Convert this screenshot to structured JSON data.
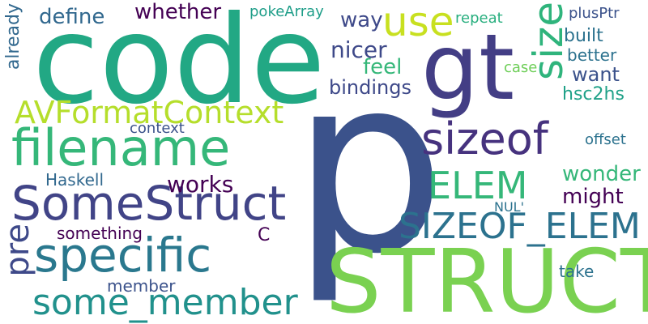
{
  "words": [
    {
      "text": "code",
      "color": "#22a884"
    },
    {
      "text": "p",
      "color": "#3b528b"
    },
    {
      "text": "STRUCT",
      "color": "#7ad151"
    },
    {
      "text": "gt",
      "color": "#433e85"
    },
    {
      "text": "filename",
      "color": "#35b779"
    },
    {
      "text": "SomeStruct",
      "color": "#414487"
    },
    {
      "text": "specific",
      "color": "#2a788e"
    },
    {
      "text": "some_member",
      "color": "#21918c"
    },
    {
      "text": "sizeof",
      "color": "#46327e"
    },
    {
      "text": "size",
      "color": "#2fb47c"
    },
    {
      "text": "use",
      "color": "#c8e020"
    },
    {
      "text": "AVFormatContext",
      "color": "#b5de2b"
    },
    {
      "text": "SIZEOF_ELEM",
      "color": "#2c728e"
    },
    {
      "text": "ELEM",
      "color": "#35b779"
    },
    {
      "text": "pre",
      "color": "#3e4989"
    },
    {
      "text": "define",
      "color": "#31688e"
    },
    {
      "text": "whether",
      "color": "#440154"
    },
    {
      "text": "pokeArray",
      "color": "#1f9e89"
    },
    {
      "text": "repeat",
      "color": "#29af7f"
    },
    {
      "text": "plusPtr",
      "color": "#3b528b"
    },
    {
      "text": "way",
      "color": "#3e4989"
    },
    {
      "text": "built",
      "color": "#2c728e"
    },
    {
      "text": "nicer",
      "color": "#3e4989"
    },
    {
      "text": "better",
      "color": "#2c728e"
    },
    {
      "text": "feel",
      "color": "#35b779"
    },
    {
      "text": "case",
      "color": "#6ece58"
    },
    {
      "text": "want",
      "color": "#3b528b"
    },
    {
      "text": "bindings",
      "color": "#3e4989"
    },
    {
      "text": "hsc2hs",
      "color": "#1fa188"
    },
    {
      "text": "already",
      "color": "#31688e"
    },
    {
      "text": "context",
      "color": "#3b528b"
    },
    {
      "text": "offset",
      "color": "#2c728e"
    },
    {
      "text": "Haskell",
      "color": "#31688e"
    },
    {
      "text": "works",
      "color": "#440154"
    },
    {
      "text": "wonder",
      "color": "#35b779"
    },
    {
      "text": "might",
      "color": "#440154"
    },
    {
      "text": "NUL'",
      "color": "#2c728e"
    },
    {
      "text": "something",
      "color": "#440154"
    },
    {
      "text": "C",
      "color": "#440154"
    },
    {
      "text": "member",
      "color": "#3b528b"
    },
    {
      "text": "take",
      "color": "#2c728e"
    }
  ]
}
